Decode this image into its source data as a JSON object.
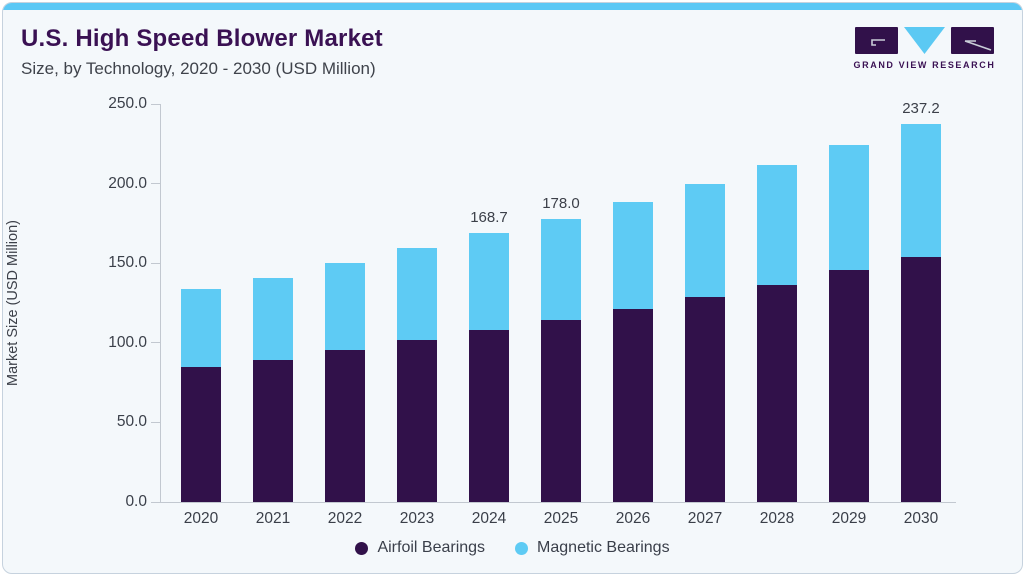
{
  "header": {
    "title": "U.S. High Speed Blower Market",
    "subtitle": "Size, by Technology, 2020 - 2030 (USD Million)",
    "logo_text": "GRAND VIEW RESEARCH"
  },
  "colors": {
    "accent_blue": "#5BC8F5",
    "airfoil_purple": "#31114A",
    "magnetic_blue": "#5ECBF4",
    "title_purple": "#3A1153",
    "card_bg": "#F4F8FB",
    "axis_gray": "#C2C8D0",
    "text_dark": "#3C4049"
  },
  "chart_data": {
    "type": "bar",
    "stacked": true,
    "title": "U.S. High Speed Blower Market Size, by Technology, 2020 - 2030 (USD Million)",
    "xlabel": "",
    "ylabel": "Market Size (USD Million)",
    "ylim": [
      0,
      250
    ],
    "ytick_step": 50,
    "ytick_labels": [
      "0.0",
      "50.0",
      "100.0",
      "150.0",
      "200.0",
      "250.0"
    ],
    "grid": false,
    "legend_position": "bottom",
    "categories": [
      "2020",
      "2021",
      "2022",
      "2023",
      "2024",
      "2025",
      "2026",
      "2027",
      "2028",
      "2029",
      "2030"
    ],
    "series": [
      {
        "name": "Airfoil Bearings",
        "color": "#31114A",
        "values": [
          84.9,
          89.5,
          95.2,
          102.0,
          108.2,
          114.5,
          121.5,
          129.0,
          136.5,
          145.5,
          154.0
        ]
      },
      {
        "name": "Magnetic Bearings",
        "color": "#5ECBF4",
        "values": [
          48.6,
          51.0,
          55.0,
          57.5,
          60.5,
          63.5,
          67.0,
          71.0,
          75.0,
          78.5,
          83.2
        ]
      }
    ],
    "totals": [
      133.5,
      140.5,
      150.2,
      159.5,
      168.7,
      178.0,
      188.5,
      200.0,
      211.5,
      224.0,
      237.2
    ],
    "total_labels": {
      "2024": "168.7",
      "2025": "178.0",
      "2030": "237.2"
    }
  }
}
